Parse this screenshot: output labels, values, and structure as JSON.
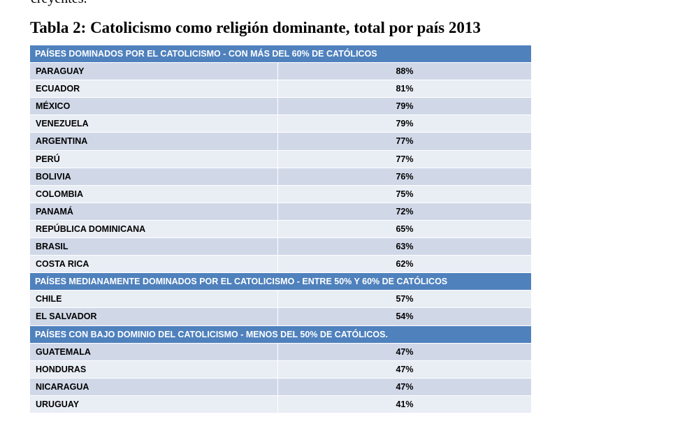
{
  "preceding_text": "creyentes.",
  "title": "Tabla 2: Catolicismo como religión dominante, total por país 2013",
  "colors": {
    "header_bg": "#4f81bd",
    "row_dark": "#d0d8e8",
    "row_light": "#e9edf4"
  },
  "sections": [
    {
      "header": "PAÍSES DOMINADOS POR EL CATOLICISMO - CON MÁS DEL 60%  DE CATÓLICOS",
      "rows": [
        {
          "country": "PARAGUAY",
          "value": "88%"
        },
        {
          "country": "ECUADOR",
          "value": "81%"
        },
        {
          "country": "MÉXICO",
          "value": "79%"
        },
        {
          "country": "VENEZUELA",
          "value": "79%"
        },
        {
          "country": "ARGENTINA",
          "value": "77%"
        },
        {
          "country": "PERÚ",
          "value": "77%"
        },
        {
          "country": "BOLIVIA",
          "value": "76%"
        },
        {
          "country": "COLOMBIA",
          "value": "75%"
        },
        {
          "country": "PANAMÁ",
          "value": "72%"
        },
        {
          "country": "REPÚBLICA DOMINICANA",
          "value": "65%"
        },
        {
          "country": "BRASIL",
          "value": "63%"
        },
        {
          "country": "COSTA RICA",
          "value": "62%"
        }
      ]
    },
    {
      "header": "PAÍSES MEDIANAMENTE DOMINADOS POR EL CATOLICISMO - ENTRE 50%  Y 60%  DE CATÓLICOS",
      "rows": [
        {
          "country": "CHILE",
          "value": "57%"
        },
        {
          "country": "EL SALVADOR",
          "value": "54%"
        }
      ]
    },
    {
      "header": "PAÍSES  CON BAJO DOMINIO DEL CATOLICISMO - MENOS DEL 50%  DE CATÓLICOS.",
      "rows": [
        {
          "country": "GUATEMALA",
          "value": "47%"
        },
        {
          "country": "HONDURAS",
          "value": "47%"
        },
        {
          "country": "NICARAGUA",
          "value": "47%"
        },
        {
          "country": "URUGUAY",
          "value": "41%"
        }
      ]
    }
  ]
}
